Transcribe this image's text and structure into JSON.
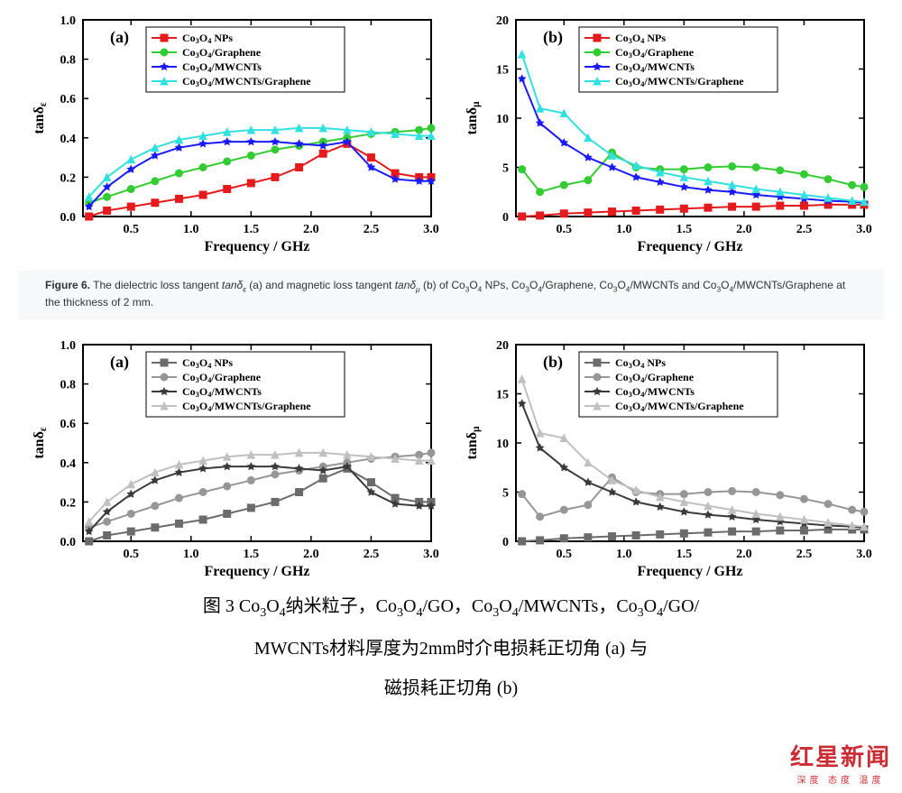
{
  "top": {
    "caption_html": "<b>Figure 6.</b> The dielectric loss tangent <i>tanδ<sub>ε</sub></i> (a) and magnetic loss tangent <i>tanδ<sub>μ</sub></i> (b) of Co<sub>3</sub>O<sub>4</sub> NPs, Co<sub>3</sub>O<sub>4</sub>/Graphene, Co<sub>3</sub>O<sub>4</sub>/MWCNTs and Co<sub>3</sub>O<sub>4</sub>/MWCNTs/Graphene at the thickness of 2 mm.",
    "chart_a": {
      "type": "line-scatter",
      "panel_label": "(a)",
      "xlabel": "Frequency / GHz",
      "ylabel_html": "tanδ<sub>ε</sub>",
      "xlim": [
        0.1,
        3.0
      ],
      "ylim": [
        0.0,
        1.0
      ],
      "xticks": [
        0.5,
        1.0,
        1.5,
        2.0,
        2.5,
        3.0
      ],
      "yticks": [
        0.0,
        0.2,
        0.4,
        0.6,
        0.8,
        1.0
      ],
      "axis_color": "#000000",
      "tick_fontsize": 14,
      "label_fontsize": 16,
      "legend_fontsize": 12,
      "line_width": 2,
      "marker_size": 4,
      "background": "#ffffff",
      "series": [
        {
          "name": "Co3O4 NPs",
          "label_html": "Co<sub>3</sub>O<sub>4</sub> NPs",
          "color": "#e41a1c",
          "marker": "square",
          "x": [
            0.15,
            0.3,
            0.5,
            0.7,
            0.9,
            1.1,
            1.3,
            1.5,
            1.7,
            1.9,
            2.1,
            2.3,
            2.5,
            2.7,
            2.9,
            3.0
          ],
          "y": [
            0.0,
            0.03,
            0.05,
            0.07,
            0.09,
            0.11,
            0.14,
            0.17,
            0.2,
            0.25,
            0.32,
            0.37,
            0.3,
            0.22,
            0.2,
            0.2
          ]
        },
        {
          "name": "Co3O4/Graphene",
          "label_html": "Co<sub>3</sub>O<sub>4</sub>/Graphene",
          "color": "#33cc33",
          "marker": "circle",
          "x": [
            0.15,
            0.3,
            0.5,
            0.7,
            0.9,
            1.1,
            1.3,
            1.5,
            1.7,
            1.9,
            2.1,
            2.3,
            2.5,
            2.7,
            2.9,
            3.0
          ],
          "y": [
            0.07,
            0.1,
            0.14,
            0.18,
            0.22,
            0.25,
            0.28,
            0.31,
            0.34,
            0.36,
            0.38,
            0.4,
            0.42,
            0.43,
            0.44,
            0.45
          ]
        },
        {
          "name": "Co3O4/MWCNTs",
          "label_html": "Co<sub>3</sub>O<sub>4</sub>/MWCNTs",
          "color": "#1a1aff",
          "marker": "star",
          "x": [
            0.15,
            0.3,
            0.5,
            0.7,
            0.9,
            1.1,
            1.3,
            1.5,
            1.7,
            1.9,
            2.1,
            2.3,
            2.5,
            2.7,
            2.9,
            3.0
          ],
          "y": [
            0.05,
            0.15,
            0.24,
            0.31,
            0.35,
            0.37,
            0.38,
            0.38,
            0.38,
            0.37,
            0.36,
            0.38,
            0.25,
            0.19,
            0.18,
            0.18
          ]
        },
        {
          "name": "Co3O4/MWCNTs/Graphene",
          "label_html": "Co<sub>3</sub>O<sub>4</sub>/MWCNTs/Graphene",
          "color": "#33e0e0",
          "marker": "triangle",
          "x": [
            0.15,
            0.3,
            0.5,
            0.7,
            0.9,
            1.1,
            1.3,
            1.5,
            1.7,
            1.9,
            2.1,
            2.3,
            2.5,
            2.7,
            2.9,
            3.0
          ],
          "y": [
            0.1,
            0.2,
            0.29,
            0.35,
            0.39,
            0.41,
            0.43,
            0.44,
            0.44,
            0.45,
            0.45,
            0.44,
            0.43,
            0.42,
            0.41,
            0.41
          ]
        }
      ]
    },
    "chart_b": {
      "type": "line-scatter",
      "panel_label": "(b)",
      "xlabel": "Frequency / GHz",
      "ylabel_html": "tanδ<sub>μ</sub>",
      "xlim": [
        0.1,
        3.0
      ],
      "ylim": [
        0,
        20
      ],
      "xticks": [
        0.5,
        1.0,
        1.5,
        2.0,
        2.5,
        3.0
      ],
      "yticks": [
        0,
        5,
        10,
        15,
        20
      ],
      "axis_color": "#000000",
      "tick_fontsize": 14,
      "label_fontsize": 16,
      "legend_fontsize": 12,
      "line_width": 2,
      "marker_size": 4,
      "background": "#ffffff",
      "series": [
        {
          "name": "Co3O4 NPs",
          "label_html": "Co<sub>3</sub>O<sub>4</sub> NPs",
          "color": "#e41a1c",
          "marker": "square",
          "x": [
            0.15,
            0.3,
            0.5,
            0.7,
            0.9,
            1.1,
            1.3,
            1.5,
            1.7,
            1.9,
            2.1,
            2.3,
            2.5,
            2.7,
            2.9,
            3.0
          ],
          "y": [
            0.0,
            0.1,
            0.3,
            0.4,
            0.5,
            0.6,
            0.7,
            0.8,
            0.9,
            1.0,
            1.0,
            1.1,
            1.1,
            1.2,
            1.2,
            1.2
          ]
        },
        {
          "name": "Co3O4/Graphene",
          "label_html": "Co<sub>3</sub>O<sub>4</sub>/Graphene",
          "color": "#33cc33",
          "marker": "circle",
          "x": [
            0.15,
            0.3,
            0.5,
            0.7,
            0.9,
            1.1,
            1.3,
            1.5,
            1.7,
            1.9,
            2.1,
            2.3,
            2.5,
            2.7,
            2.9,
            3.0
          ],
          "y": [
            4.8,
            2.5,
            3.2,
            3.7,
            6.5,
            5.0,
            4.8,
            4.8,
            5.0,
            5.1,
            5.0,
            4.7,
            4.3,
            3.8,
            3.2,
            3.0
          ]
        },
        {
          "name": "Co3O4/MWCNTs",
          "label_html": "Co<sub>3</sub>O<sub>4</sub>/MWCNTs",
          "color": "#1a1aff",
          "marker": "star",
          "x": [
            0.15,
            0.3,
            0.5,
            0.7,
            0.9,
            1.1,
            1.3,
            1.5,
            1.7,
            1.9,
            2.1,
            2.3,
            2.5,
            2.7,
            2.9,
            3.0
          ],
          "y": [
            14.0,
            9.5,
            7.5,
            6.0,
            5.0,
            4.0,
            3.5,
            3.0,
            2.7,
            2.5,
            2.2,
            2.0,
            1.8,
            1.6,
            1.5,
            1.4
          ]
        },
        {
          "name": "Co3O4/MWCNTs/Graphene",
          "label_html": "Co<sub>3</sub>O<sub>4</sub>/MWCNTs/Graphene",
          "color": "#33e0e0",
          "marker": "triangle",
          "x": [
            0.15,
            0.3,
            0.5,
            0.7,
            0.9,
            1.1,
            1.3,
            1.5,
            1.7,
            1.9,
            2.1,
            2.3,
            2.5,
            2.7,
            2.9,
            3.0
          ],
          "y": [
            16.5,
            11.0,
            10.5,
            8.0,
            6.2,
            5.2,
            4.5,
            4.0,
            3.6,
            3.2,
            2.8,
            2.5,
            2.2,
            1.9,
            1.6,
            1.5
          ]
        }
      ]
    }
  },
  "bottom": {
    "caption_lines": [
      "图 3 Co<sub>3</sub>O<sub>4</sub>纳米粒子，Co<sub>3</sub>O<sub>4</sub>/GO，Co<sub>3</sub>O<sub>4</sub>/MWCNTs，Co<sub>3</sub>O<sub>4</sub>/GO/",
      "MWCNTs材料厚度为2mm时介电损耗正切角 (a) 与",
      "磁损耗正切角 (b)"
    ],
    "gray_palette": [
      "#6b6b6b",
      "#969696",
      "#3a3a3a",
      "#c0c0c0"
    ],
    "gray_markers": [
      "square",
      "circle",
      "star",
      "triangle"
    ]
  },
  "watermark": {
    "main": "红星新闻",
    "sub": "深度 态度 温度",
    "color": "#c8151d"
  }
}
